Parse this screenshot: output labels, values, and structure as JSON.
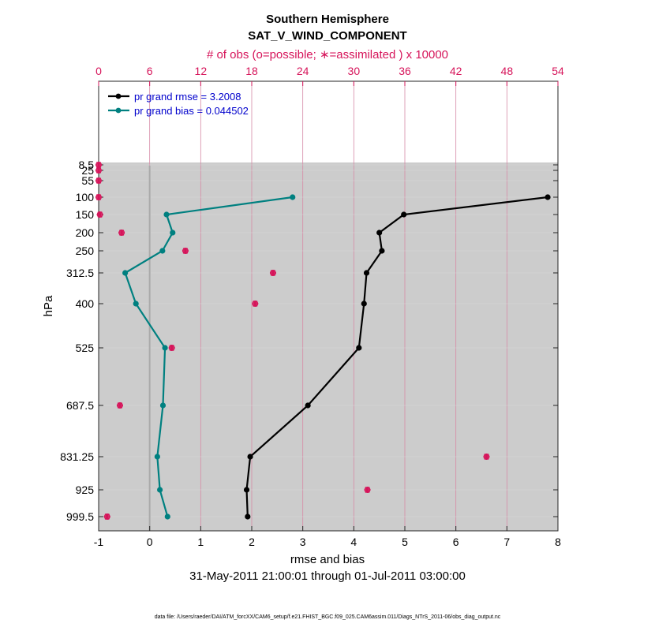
{
  "chart_data": {
    "type": "line",
    "title": "Southern Hemisphere",
    "subtitle": "SAT_V_WIND_COMPONENT",
    "top_axis_label": "# of obs (o=possible; ∗=assimilated ) x 10000",
    "xlabel": "rmse and bias",
    "ylabel": "hPa",
    "date_range": "31-May-2011 21:00:01 through 01-Jul-2011 03:00:00",
    "footer": "data file: /Users/raeder/DAI/ATM_forcXX/CAM6_setup/f.e21.FHIST_BGC.f09_025.CAM6assim.011/Diags_NTrS_2011-06/obs_diag_output.nc",
    "xlim": [
      -1,
      8
    ],
    "xticks": [
      "-1",
      "0",
      "1",
      "2",
      "3",
      "4",
      "5",
      "6",
      "7",
      "8"
    ],
    "top_xlim": [
      0,
      54
    ],
    "top_xticks": [
      "0",
      "6",
      "12",
      "18",
      "24",
      "30",
      "36",
      "42",
      "48",
      "54"
    ],
    "levels": [
      "8.5",
      "25",
      "55",
      "100",
      "150",
      "200",
      "250",
      "312.5",
      "400",
      "525",
      "687.5",
      "831.25",
      "925",
      "999.5"
    ],
    "series": [
      {
        "name": "pr grand rmse = 3.2008",
        "color": "#000000",
        "values": [
          null,
          null,
          null,
          7.8,
          4.98,
          4.5,
          4.55,
          4.25,
          4.2,
          4.1,
          3.1,
          1.97,
          1.9,
          1.92
        ]
      },
      {
        "name": "pr grand bias = 0.044502",
        "color": "#008080",
        "values": [
          null,
          null,
          null,
          2.8,
          0.33,
          0.45,
          0.25,
          -0.48,
          -0.27,
          0.3,
          0.26,
          0.15,
          0.2,
          0.35
        ]
      }
    ],
    "obs_counts": {
      "color": "#d6145a",
      "possible": [
        0.0,
        0.0,
        0.0,
        0.0,
        0.15,
        2.7,
        10.2,
        20.5,
        18.4,
        8.6,
        2.5,
        45.6,
        31.6,
        1.0
      ],
      "assimilated": [
        0.0,
        0.0,
        0.0,
        0.0,
        0.15,
        2.7,
        10.2,
        20.5,
        18.4,
        8.6,
        2.5,
        45.6,
        31.6,
        1.0
      ]
    },
    "shaded_bands": [
      [
        "8.5",
        "25"
      ],
      [
        "55",
        "100"
      ],
      [
        "150",
        "200"
      ],
      [
        "250",
        "312.5"
      ],
      [
        "400",
        "525"
      ],
      [
        "687.5",
        "831.25"
      ],
      [
        "925",
        "999.5"
      ]
    ],
    "grid": "vertical",
    "legend": "top-left"
  }
}
